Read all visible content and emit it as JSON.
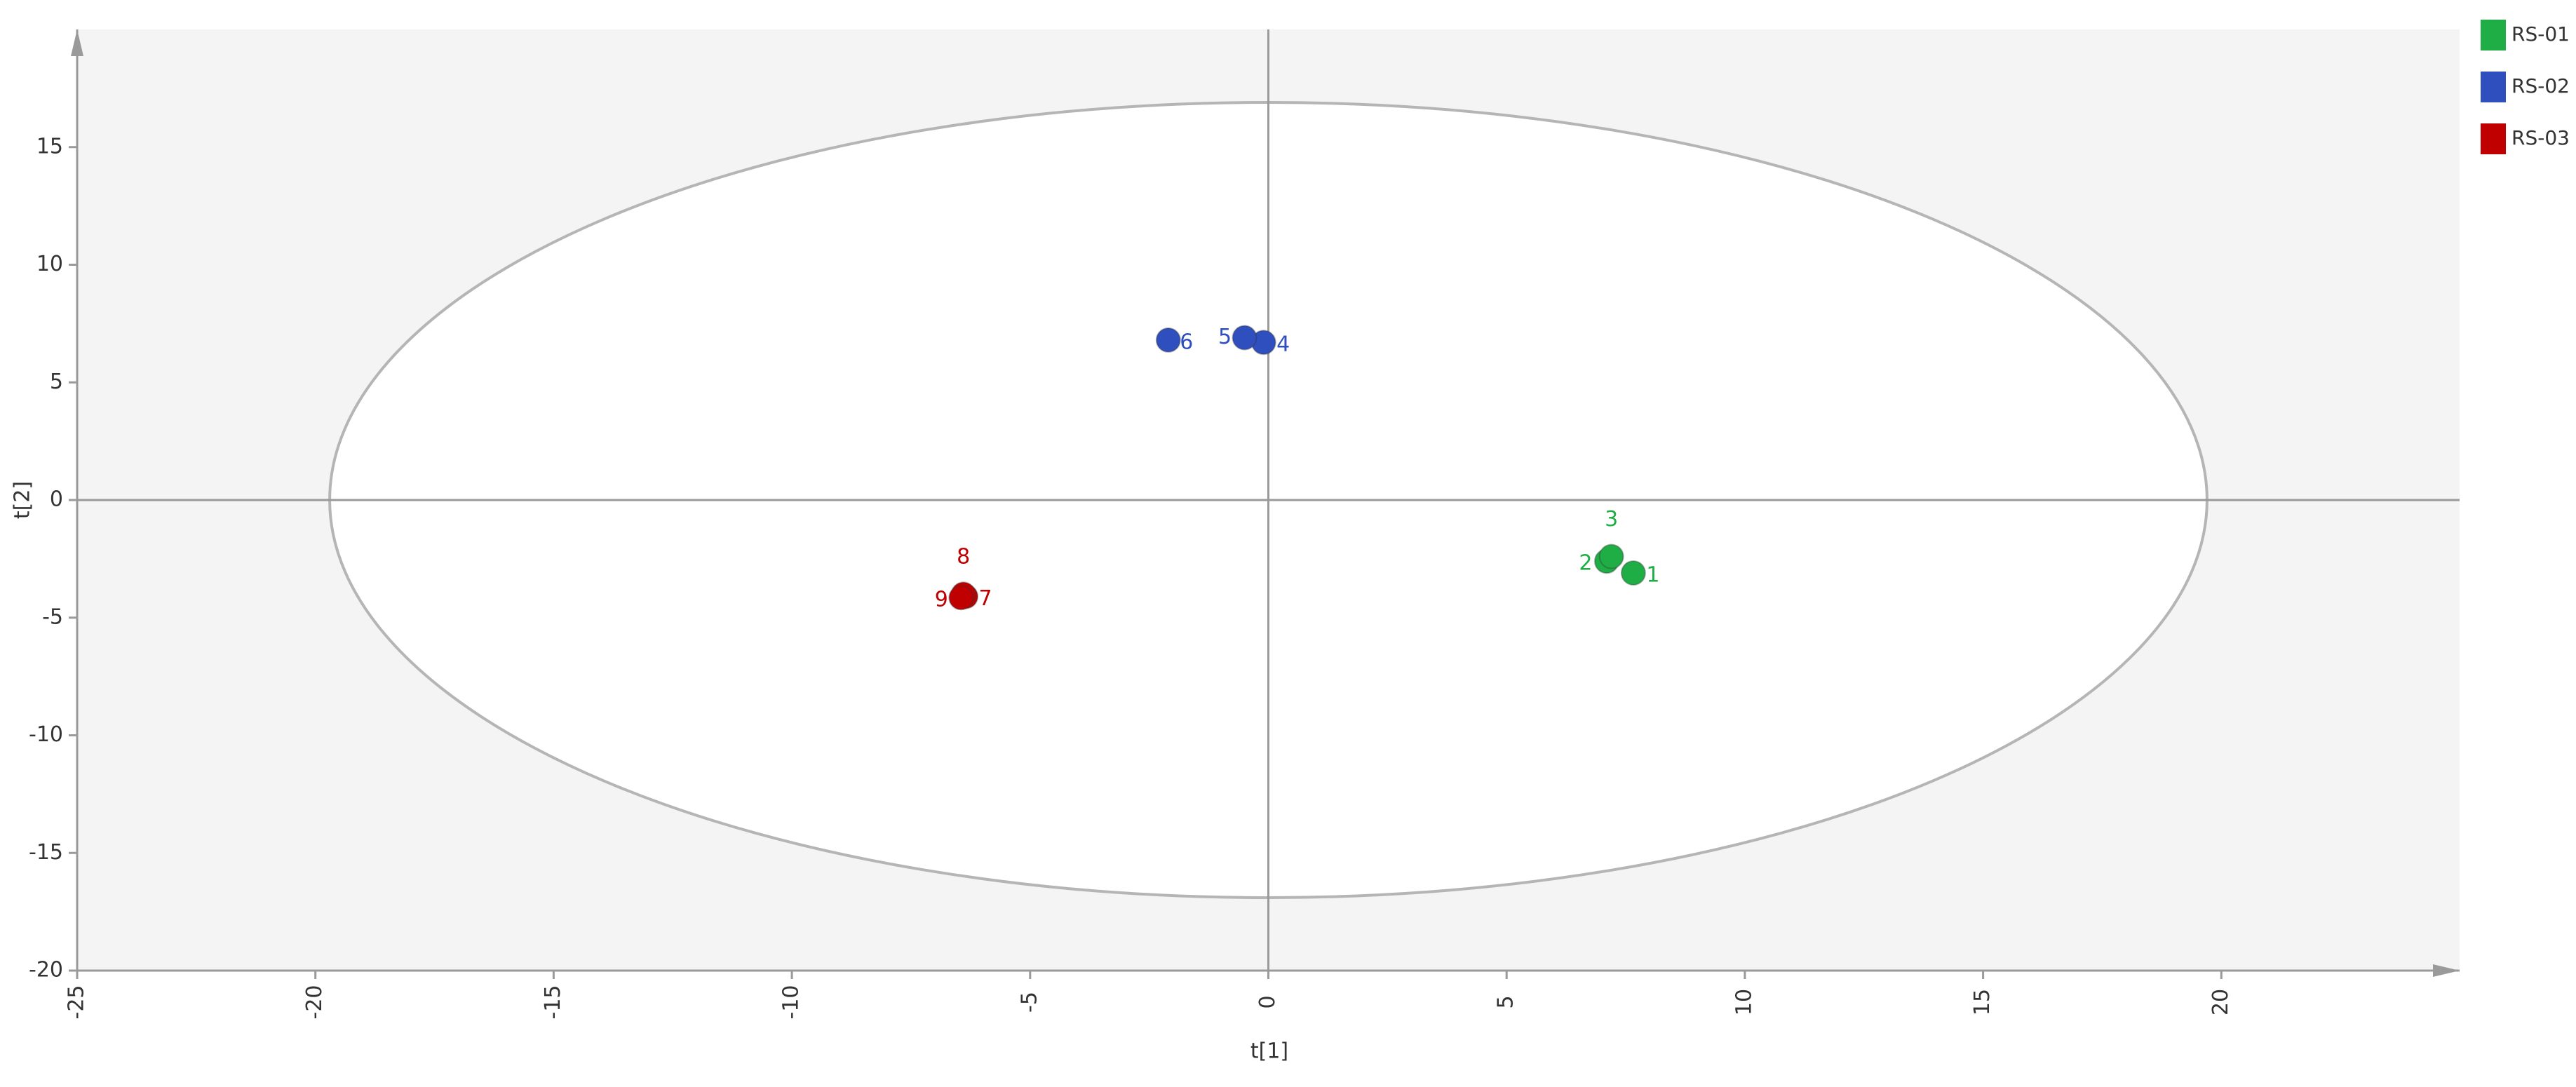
{
  "chart_data": {
    "type": "scatter",
    "x_label": "t[1]",
    "y_label": "t[2]",
    "xlim": [
      -25,
      25
    ],
    "ylim": [
      -20,
      20
    ],
    "xticks": [
      -25,
      -20,
      -15,
      -10,
      -5,
      0,
      5,
      10,
      15,
      20
    ],
    "yticks": [
      -20,
      -15,
      -10,
      -5,
      0,
      5,
      10,
      15
    ],
    "legend": "top-right",
    "ellipse": {
      "rx": 19.7,
      "ry": 16.9
    },
    "series": [
      {
        "name": "RS-01",
        "color": "#1fae46",
        "labels": [
          "1",
          "2",
          "3"
        ],
        "x": [
          7.66,
          7.1,
          7.2
        ],
        "values": [
          -3.1,
          -2.6,
          -2.4
        ]
      },
      {
        "name": "RS-02",
        "color": "#2f4fbf",
        "labels": [
          "4",
          "5",
          "6"
        ],
        "x": [
          -0.1,
          -0.5,
          -2.1
        ],
        "values": [
          6.7,
          6.9,
          6.8
        ]
      },
      {
        "name": "RS-03",
        "color": "#c00000",
        "labels": [
          "7",
          "8",
          "9"
        ],
        "x": [
          -6.35,
          -6.4,
          -6.45
        ],
        "values": [
          -4.1,
          -4.0,
          -4.15
        ]
      }
    ]
  }
}
